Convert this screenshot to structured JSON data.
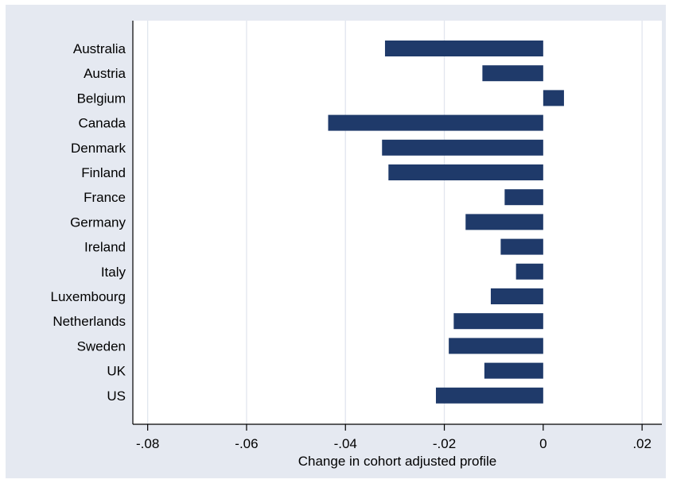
{
  "chart_data": {
    "type": "bar",
    "orientation": "horizontal",
    "categories": [
      "Australia",
      "Austria",
      "Belgium",
      "Canada",
      "Denmark",
      "Finland",
      "France",
      "Germany",
      "Ireland",
      "Italy",
      "Luxembourg",
      "Netherlands",
      "Sweden",
      "UK",
      "US"
    ],
    "values": [
      -0.032,
      -0.0123,
      0.0042,
      -0.0435,
      -0.0326,
      -0.0313,
      -0.0078,
      -0.0157,
      -0.0086,
      -0.0055,
      -0.0106,
      -0.0181,
      -0.0191,
      -0.0119,
      -0.0217
    ],
    "title": "",
    "xlabel": "Change in cohort adjusted profile",
    "ylabel": "",
    "xlim": [
      -0.083,
      0.024
    ],
    "xticks": [
      -0.08,
      -0.06,
      -0.04,
      -0.02,
      0,
      0.02
    ],
    "xtick_labels": [
      "-.08",
      "-.06",
      "-.04",
      "-.02",
      "0",
      ".02"
    ],
    "grid": true,
    "legend": "none",
    "colors": {
      "bar": "#1f3a6a",
      "outer_background": "#e5e9f1",
      "plot_background": "#ffffff",
      "grid": "#e1e6ee",
      "axis": "#000000"
    }
  }
}
